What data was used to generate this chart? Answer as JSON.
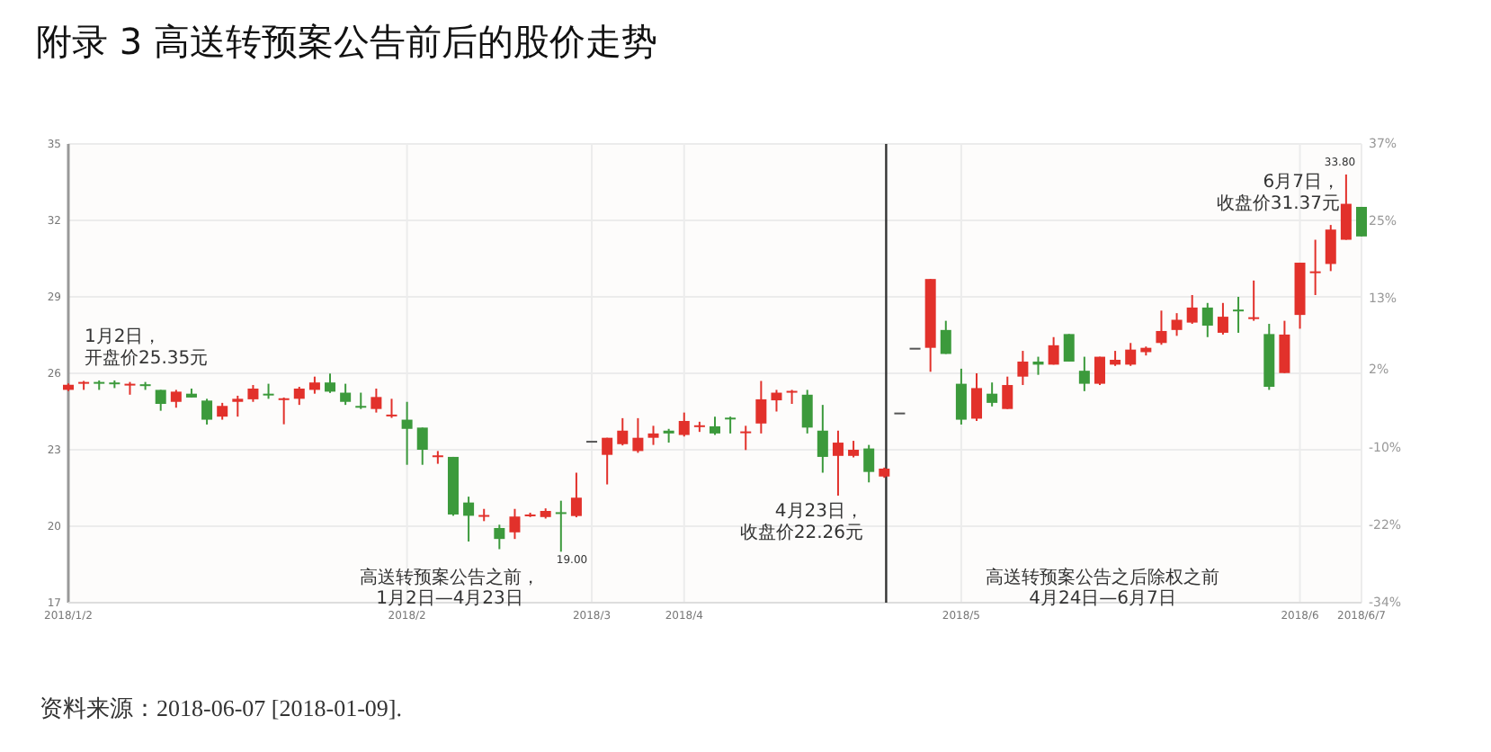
{
  "chart_data": {
    "type": "candlestick",
    "title": "附录 3 高送转预案公告前后的股价走势",
    "categories": [
      "2018/1/2",
      null,
      null,
      null,
      null,
      null,
      null,
      null,
      null,
      null,
      null,
      null,
      null,
      null,
      null,
      null,
      null,
      null,
      null,
      null,
      null,
      null,
      "2018/2",
      null,
      null,
      null,
      null,
      null,
      null,
      null,
      null,
      null,
      null,
      null,
      "2018/3",
      null,
      null,
      null,
      null,
      null,
      "2018/4",
      null,
      null,
      null,
      null,
      null,
      null,
      null,
      null,
      null,
      null,
      null,
      null,
      null,
      null,
      null,
      null,
      null,
      "2018/5",
      null,
      null,
      null,
      null,
      null,
      null,
      null,
      null,
      null,
      null,
      null,
      null,
      null,
      null,
      null,
      null,
      null,
      null,
      null,
      null,
      null,
      "2018/6",
      null,
      null,
      null,
      "2018/6/7"
    ],
    "ohlc": [
      [
        25.35,
        25.6,
        25.3,
        25.55
      ],
      [
        25.62,
        25.7,
        25.35,
        25.66
      ],
      [
        25.66,
        25.72,
        25.35,
        25.62
      ],
      [
        25.64,
        25.72,
        25.42,
        25.62
      ],
      [
        25.55,
        25.66,
        25.16,
        25.59
      ],
      [
        25.57,
        25.66,
        25.35,
        25.5
      ],
      [
        25.35,
        25.35,
        24.53,
        24.8
      ],
      [
        24.88,
        25.35,
        24.65,
        25.28
      ],
      [
        25.2,
        25.4,
        25.05,
        25.05
      ],
      [
        24.93,
        25.0,
        23.99,
        24.18
      ],
      [
        24.3,
        24.84,
        24.18,
        24.72
      ],
      [
        24.88,
        25.12,
        24.3,
        25.0
      ],
      [
        24.98,
        25.54,
        24.88,
        25.4
      ],
      [
        25.2,
        25.59,
        25.0,
        25.14
      ],
      [
        24.98,
        25.05,
        24.0,
        25.02
      ],
      [
        25.0,
        25.47,
        24.76,
        25.4
      ],
      [
        25.35,
        25.87,
        25.2,
        25.64
      ],
      [
        25.64,
        25.99,
        25.23,
        25.28
      ],
      [
        25.24,
        25.59,
        24.76,
        24.88
      ],
      [
        24.72,
        25.24,
        24.6,
        24.68
      ],
      [
        24.6,
        25.4,
        24.46,
        25.07
      ],
      [
        24.35,
        25.0,
        24.25,
        24.38
      ],
      [
        24.18,
        24.88,
        22.41,
        23.82
      ],
      [
        23.87,
        23.87,
        22.41,
        23.0
      ],
      [
        22.74,
        22.95,
        22.45,
        22.78
      ],
      [
        22.72,
        22.72,
        20.41,
        20.46
      ],
      [
        20.93,
        21.16,
        19.4,
        20.41
      ],
      [
        20.38,
        20.68,
        20.2,
        20.44
      ],
      [
        19.93,
        20.06,
        19.1,
        19.5
      ],
      [
        19.76,
        20.68,
        19.5,
        20.38
      ],
      [
        20.4,
        20.53,
        20.36,
        20.46
      ],
      [
        20.36,
        20.7,
        20.3,
        20.6
      ],
      [
        20.55,
        21.0,
        19.0,
        20.5
      ],
      [
        20.4,
        22.1,
        20.35,
        21.12
      ],
      [
        23.35,
        23.35,
        23.35,
        23.35
      ],
      [
        22.8,
        23.47,
        21.64,
        23.47
      ],
      [
        23.22,
        24.24,
        23.17,
        23.75
      ],
      [
        22.95,
        24.24,
        22.88,
        23.47
      ],
      [
        23.47,
        23.94,
        23.19,
        23.64
      ],
      [
        23.75,
        23.82,
        23.28,
        23.64
      ],
      [
        23.58,
        24.46,
        23.52,
        24.13
      ],
      [
        23.92,
        24.1,
        23.7,
        23.96
      ],
      [
        23.92,
        24.3,
        23.58,
        23.64
      ],
      [
        24.26,
        24.3,
        23.64,
        24.22
      ],
      [
        23.68,
        23.94,
        22.99,
        23.72
      ],
      [
        24.03,
        25.7,
        23.64,
        24.98
      ],
      [
        24.94,
        25.35,
        24.5,
        25.24
      ],
      [
        25.28,
        25.35,
        24.8,
        25.31
      ],
      [
        25.16,
        25.35,
        23.64,
        23.87
      ],
      [
        23.75,
        24.76,
        22.1,
        22.72
      ],
      [
        22.76,
        23.75,
        21.2,
        23.28
      ],
      [
        22.76,
        23.35,
        22.7,
        23.0
      ],
      [
        23.05,
        23.19,
        21.72,
        22.13
      ],
      [
        21.95,
        22.3,
        21.9,
        22.26
      ],
      [
        24.46,
        24.46,
        24.46,
        24.46
      ],
      [
        27.0,
        27.0,
        27.0,
        27.0
      ],
      [
        27.0,
        29.7,
        26.06,
        29.7
      ],
      [
        27.7,
        28.06,
        26.76,
        26.76
      ],
      [
        25.59,
        26.18,
        23.99,
        24.18
      ],
      [
        24.22,
        26.0,
        24.13,
        25.42
      ],
      [
        25.2,
        25.64,
        24.7,
        24.84
      ],
      [
        24.6,
        25.87,
        24.6,
        25.54
      ],
      [
        25.87,
        26.88,
        25.54,
        26.46
      ],
      [
        26.46,
        26.65,
        25.94,
        26.34
      ],
      [
        26.34,
        27.42,
        26.34,
        27.1
      ],
      [
        27.54,
        27.54,
        26.46,
        26.46
      ],
      [
        26.1,
        26.65,
        25.3,
        25.59
      ],
      [
        25.59,
        26.65,
        25.54,
        26.65
      ],
      [
        26.34,
        26.88,
        26.29,
        26.53
      ],
      [
        26.34,
        27.19,
        26.29,
        26.93
      ],
      [
        26.83,
        27.05,
        26.7,
        27.0
      ],
      [
        27.19,
        28.46,
        27.12,
        27.66
      ],
      [
        27.7,
        28.36,
        27.47,
        28.1
      ],
      [
        27.99,
        29.07,
        27.94,
        28.58
      ],
      [
        28.58,
        28.76,
        27.42,
        27.87
      ],
      [
        27.59,
        28.76,
        27.52,
        28.22
      ],
      [
        28.5,
        29.0,
        27.59,
        28.46
      ],
      [
        28.15,
        29.64,
        28.06,
        28.2
      ],
      [
        27.54,
        27.94,
        25.35,
        25.47
      ],
      [
        26.01,
        28.06,
        26.01,
        27.52
      ],
      [
        28.29,
        30.34,
        27.75,
        30.34
      ],
      [
        29.95,
        31.24,
        29.07,
        30.0
      ],
      [
        30.29,
        31.82,
        30.01,
        31.64
      ],
      [
        31.24,
        33.8,
        31.24,
        32.65
      ],
      [
        32.53,
        32.53,
        31.37,
        31.37
      ]
    ],
    "colors": [
      "#e2312b",
      "#e2312b",
      "#3c9a3c",
      "#3c9a3c",
      "#e2312b",
      "#3c9a3c",
      "#3c9a3c",
      "#e2312b",
      "#3c9a3c",
      "#3c9a3c",
      "#e2312b",
      "#e2312b",
      "#e2312b",
      "#3c9a3c",
      "#e2312b",
      "#e2312b",
      "#e2312b",
      "#3c9a3c",
      "#3c9a3c",
      "#3c9a3c",
      "#e2312b",
      "#e2312b",
      "#3c9a3c",
      "#3c9a3c",
      "#e2312b",
      "#3c9a3c",
      "#3c9a3c",
      "#e2312b",
      "#3c9a3c",
      "#e2312b",
      "#e2312b",
      "#e2312b",
      "#3c9a3c",
      "#e2312b",
      "#555555",
      "#e2312b",
      "#e2312b",
      "#e2312b",
      "#e2312b",
      "#3c9a3c",
      "#e2312b",
      "#e2312b",
      "#3c9a3c",
      "#3c9a3c",
      "#e2312b",
      "#e2312b",
      "#e2312b",
      "#e2312b",
      "#3c9a3c",
      "#3c9a3c",
      "#e2312b",
      "#e2312b",
      "#3c9a3c",
      "#e2312b",
      "#555555",
      "#555555",
      "#e2312b",
      "#3c9a3c",
      "#3c9a3c",
      "#e2312b",
      "#3c9a3c",
      "#e2312b",
      "#e2312b",
      "#3c9a3c",
      "#e2312b",
      "#3c9a3c",
      "#3c9a3c",
      "#e2312b",
      "#e2312b",
      "#e2312b",
      "#e2312b",
      "#e2312b",
      "#e2312b",
      "#e2312b",
      "#3c9a3c",
      "#e2312b",
      "#3c9a3c",
      "#e2312b",
      "#3c9a3c",
      "#e2312b",
      "#e2312b",
      "#e2312b",
      "#e2312b",
      "#e2312b",
      "#3c9a3c"
    ],
    "ylim": [
      17,
      35
    ],
    "yticks": [
      17,
      20,
      23,
      26,
      29,
      32,
      35
    ],
    "y2lim": [
      -34,
      37
    ],
    "y2ticks": [
      {
        "value": -34,
        "label": "-34%"
      },
      {
        "value": -22,
        "label": "-22%"
      },
      {
        "value": -10,
        "label": "-10%"
      },
      {
        "value": 2,
        "label": "2%"
      },
      {
        "value": 13,
        "label": "13%"
      },
      {
        "value": 25,
        "label": "25%"
      },
      {
        "value": 37,
        "label": "37%"
      }
    ],
    "grid": true,
    "annotations": [
      "1月2日，",
      "开盘价25.35元",
      "4月23日，",
      "收盘价22.26元",
      "6月7日，",
      "收盘价31.37元",
      "19.00",
      "33.80",
      "高送转预案公告之前，\n1月2日—4月23日",
      "高送转预案公告之后除权之前\n4月24日—6月7日",
      "资料来源：2018-06-07 [2018-01-09]."
    ]
  }
}
